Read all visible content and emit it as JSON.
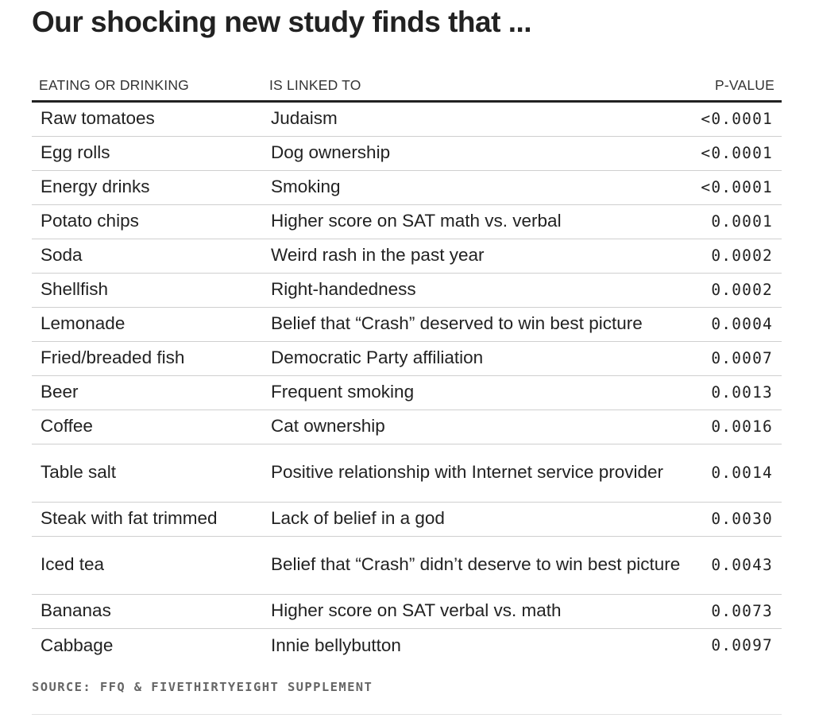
{
  "title": "Our shocking new study finds that ...",
  "chart_data": {
    "type": "table",
    "columns": [
      "EATING OR DRINKING",
      "IS LINKED TO",
      "P-VALUE"
    ],
    "rows": [
      {
        "food": "Raw tomatoes",
        "linked": "Judaism",
        "p": "<0.0001"
      },
      {
        "food": "Egg rolls",
        "linked": "Dog ownership",
        "p": "<0.0001"
      },
      {
        "food": "Energy drinks",
        "linked": "Smoking",
        "p": "<0.0001"
      },
      {
        "food": "Potato chips",
        "linked": "Higher score on SAT math vs. verbal",
        "p": "0.0001"
      },
      {
        "food": "Soda",
        "linked": "Weird rash in the past year",
        "p": "0.0002"
      },
      {
        "food": "Shellfish",
        "linked": "Right-handedness",
        "p": "0.0002"
      },
      {
        "food": "Lemonade",
        "linked": "Belief that “Crash” deserved to win best picture",
        "p": "0.0004"
      },
      {
        "food": "Fried/breaded fish",
        "linked": "Democratic Party affiliation",
        "p": "0.0007"
      },
      {
        "food": "Beer",
        "linked": "Frequent smoking",
        "p": "0.0013"
      },
      {
        "food": "Coffee",
        "linked": "Cat ownership",
        "p": "0.0016"
      },
      {
        "food": "Table salt",
        "linked": "Positive relationship with Internet service provider",
        "p": "0.0014"
      },
      {
        "food": "Steak with fat trimmed",
        "linked": "Lack of belief in a god",
        "p": "0.0030"
      },
      {
        "food": "Iced tea",
        "linked": "Belief that “Crash” didn’t deserve to win best picture",
        "p": "0.0043"
      },
      {
        "food": "Bananas",
        "linked": "Higher score on SAT verbal vs. math",
        "p": "0.0073"
      },
      {
        "food": "Cabbage",
        "linked": "Innie bellybutton",
        "p": "0.0097"
      }
    ]
  },
  "source": "SOURCE: FFQ & FIVETHIRTYEIGHT SUPPLEMENT"
}
